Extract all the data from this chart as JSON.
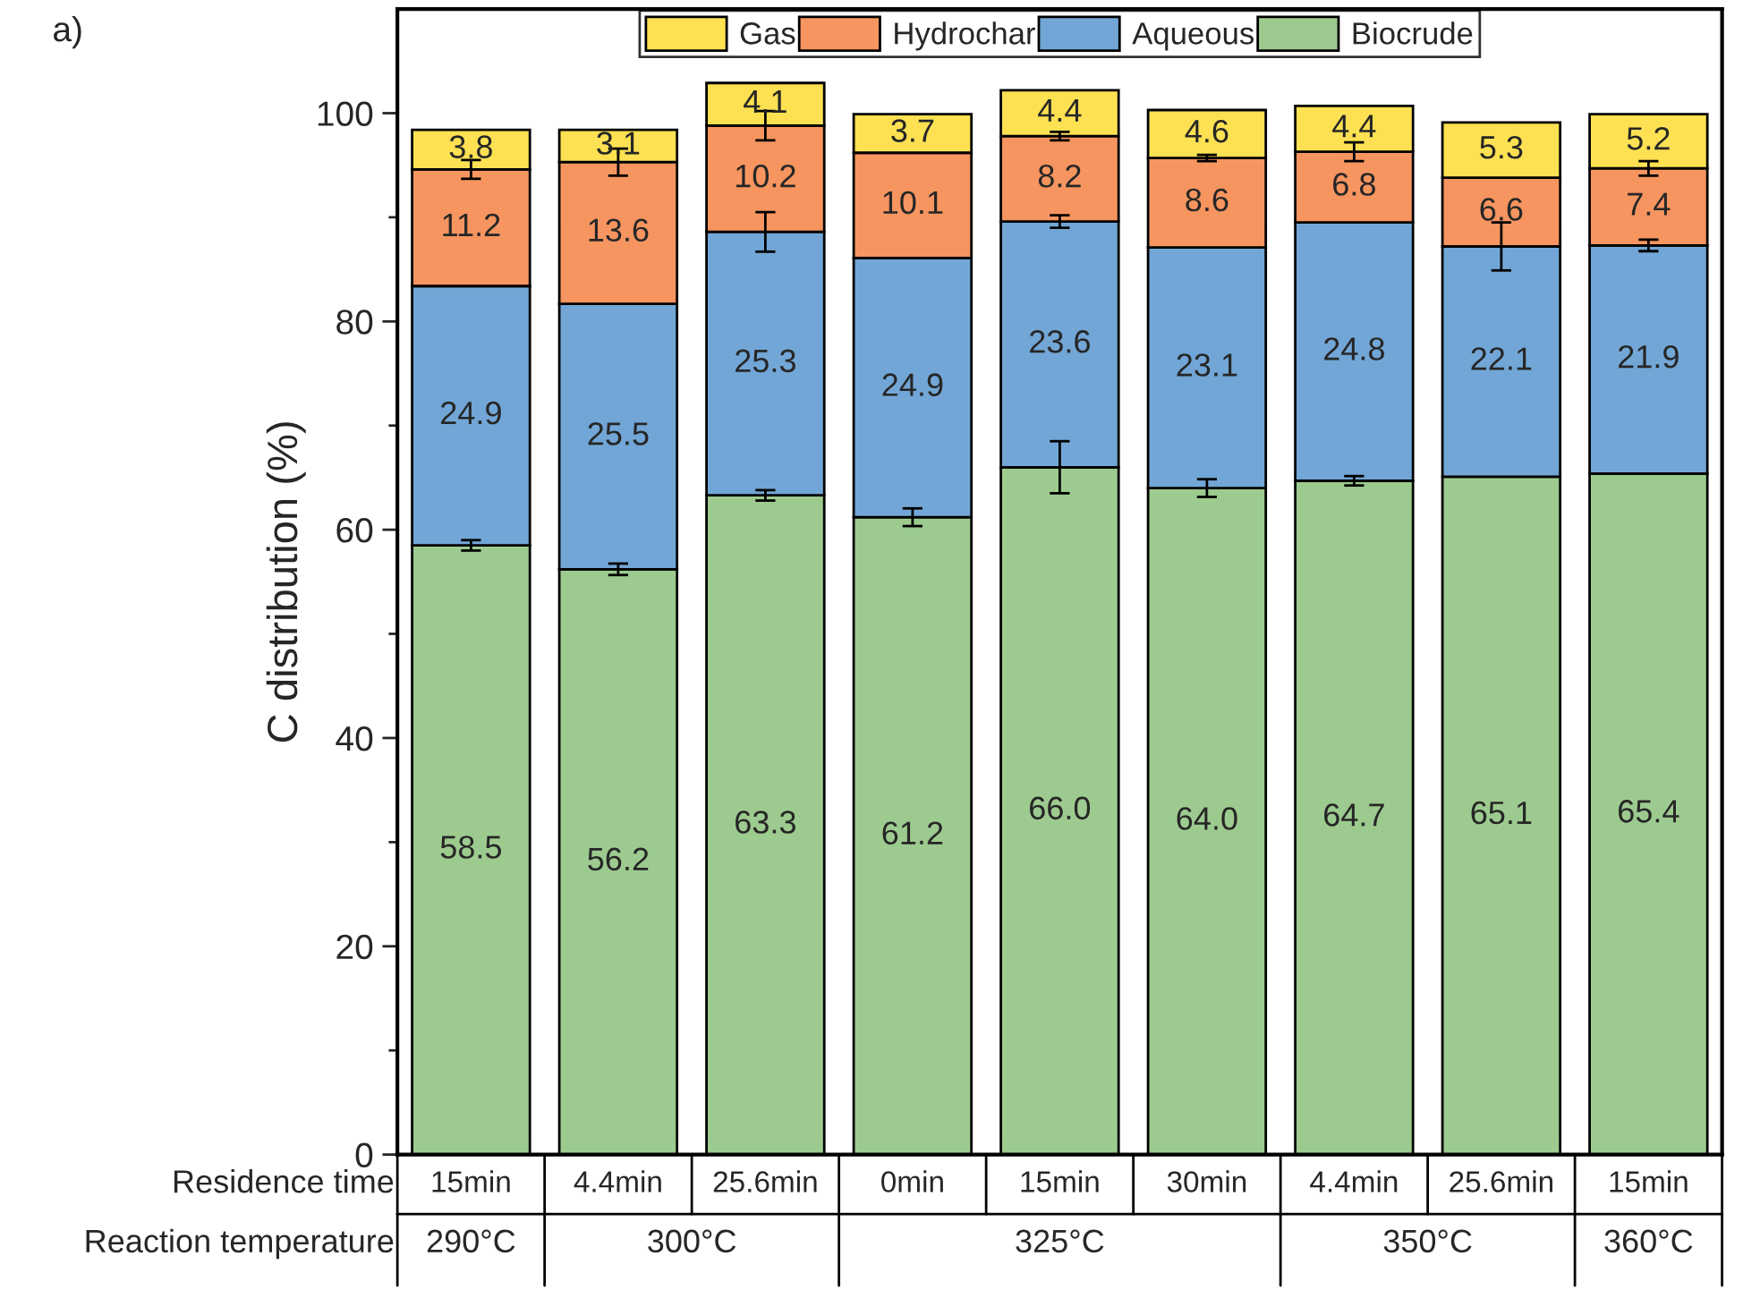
{
  "chart_data": {
    "type": "bar",
    "stacked": true,
    "ylabel": "C distribution (%)",
    "xlabel": "Residence time",
    "x2label": "Reaction temperature",
    "categories": [
      "15min",
      "4.4min",
      "25.6min",
      "0min",
      "15min",
      "30min",
      "4.4min",
      "25.6min",
      "15min"
    ],
    "series": [
      {
        "name": "Biocrude",
        "color": "#9dcb8f",
        "values": [
          58.5,
          56.2,
          63.3,
          61.2,
          66.0,
          64.0,
          64.7,
          65.1,
          65.4
        ],
        "value_labels": [
          "58.5",
          "56.2",
          "63.3",
          "61.2",
          "66.0",
          "64.0",
          "64.7",
          "65.1",
          "65.4"
        ],
        "errors": [
          0.5,
          0.55,
          0.5,
          0.85,
          2.5,
          0.85,
          0.45,
          null,
          null
        ]
      },
      {
        "name": "Aqueous",
        "color": "#72a6d6",
        "values": [
          24.9,
          25.5,
          25.3,
          24.9,
          23.6,
          23.1,
          24.8,
          22.1,
          21.9
        ],
        "value_labels": [
          "24.9",
          "25.5",
          "25.3",
          "24.9",
          "23.6",
          "23.1",
          "24.8",
          "22.1",
          "21.9"
        ],
        "errors": [
          null,
          null,
          1.9,
          null,
          0.6,
          null,
          null,
          2.3,
          0.55
        ]
      },
      {
        "name": "Hydrochar",
        "color": "#f69560",
        "values": [
          11.2,
          13.6,
          10.2,
          10.1,
          8.2,
          8.6,
          6.8,
          6.6,
          7.4
        ],
        "value_labels": [
          "11.2",
          "13.6",
          "10.2",
          "10.1",
          "8.2",
          "8.6",
          "6.8",
          "6.6",
          "7.4"
        ],
        "errors": [
          0.9,
          1.3,
          1.4,
          null,
          0.4,
          0.3,
          0.9,
          null,
          0.7
        ]
      },
      {
        "name": "Gas",
        "color": "#fde152",
        "values": [
          3.8,
          3.1,
          4.1,
          3.7,
          4.4,
          4.6,
          4.4,
          5.3,
          5.2
        ],
        "value_labels": [
          "3.8",
          "3.1",
          "4.1",
          "3.7",
          "4.4",
          "4.6",
          "4.4",
          "5.3",
          "5.2"
        ]
      }
    ],
    "ylim": [
      0,
      110
    ],
    "yticks": [
      0,
      {
        "value": 10,
        "label": null
      },
      20,
      {
        "value": 30,
        "label": null
      },
      40,
      {
        "value": 50,
        "label": null
      },
      60,
      {
        "value": 70,
        "label": null
      },
      80,
      {
        "value": 90,
        "label": null
      },
      100
    ],
    "legend": "top",
    "grid": false,
    "annotations": [
      "a)",
      "290°C",
      "300°C",
      "325°C",
      "350°C",
      "360°C"
    ]
  }
}
